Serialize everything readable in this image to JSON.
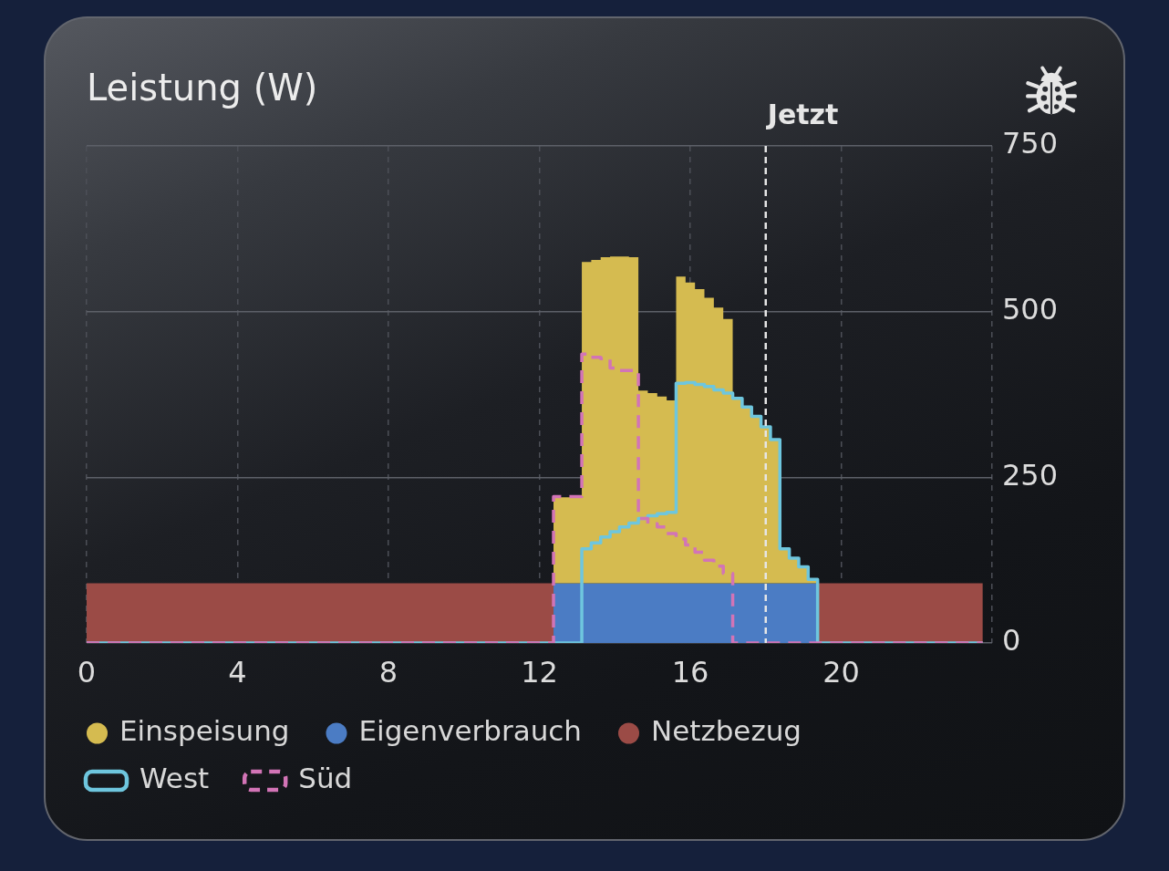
{
  "chart_data": {
    "type": "area",
    "title": "Leistung (W)",
    "x": [
      0,
      12.375,
      12.375,
      13.125,
      13.125,
      13.375,
      13.375,
      13.625,
      13.625,
      13.875,
      13.875,
      14.125,
      14.125,
      14.375,
      14.375,
      14.625,
      14.625,
      14.875,
      14.875,
      15.125,
      15.125,
      15.375,
      15.375,
      15.625,
      15.625,
      15.875,
      15.875,
      16.125,
      16.125,
      16.375,
      16.375,
      16.625,
      16.625,
      16.875,
      16.875,
      17.125,
      17.125,
      17.375,
      17.375,
      17.625,
      17.625,
      17.875,
      17.875,
      18.125,
      18.125,
      18.375,
      18.375,
      18.625,
      18.625,
      18.875,
      18.875,
      19.125,
      19.125,
      19.375,
      19.375,
      23.75
    ],
    "series": [
      {
        "name": "Netzbezug",
        "color": "#9b4b46",
        "values": [
          90,
          90,
          null,
          null,
          null,
          null,
          null,
          null,
          null,
          null,
          null,
          null,
          null,
          null,
          null,
          null,
          null,
          null,
          null,
          null,
          null,
          null,
          null,
          null,
          null,
          null,
          null,
          null,
          null,
          null,
          null,
          null,
          null,
          null,
          null,
          null,
          null,
          null,
          null,
          null,
          null,
          null,
          null,
          null,
          null,
          null,
          null,
          null,
          null,
          null,
          null,
          null,
          null,
          null,
          90,
          90
        ]
      },
      {
        "name": "Eigenverbrauch",
        "color": "#4b7cc4",
        "values": [
          null,
          null,
          90,
          90,
          90,
          90,
          90,
          90,
          90,
          90,
          90,
          90,
          90,
          90,
          90,
          90,
          90,
          90,
          90,
          90,
          90,
          90,
          90,
          90,
          90,
          90,
          90,
          90,
          90,
          90,
          90,
          90,
          90,
          90,
          90,
          90,
          90,
          90,
          90,
          90,
          90,
          90,
          90,
          90,
          90,
          90,
          90,
          90,
          90,
          90,
          90,
          90,
          90,
          90,
          null,
          null
        ]
      },
      {
        "name": "Einspeisung",
        "color": "#d5bb50",
        "values": [
          null,
          null,
          130,
          130,
          485,
          485,
          488,
          488,
          492,
          492,
          493,
          493,
          493,
          493,
          492,
          492,
          291,
          291,
          287,
          287,
          282,
          282,
          276,
          276,
          463,
          463,
          454,
          454,
          444,
          444,
          431,
          431,
          416,
          416,
          399,
          399,
          279,
          279,
          266,
          266,
          252,
          252,
          236,
          236,
          217,
          217,
          52,
          52,
          38,
          38,
          25,
          25,
          6,
          6,
          null,
          null
        ]
      },
      {
        "name": "West",
        "type": "line",
        "color": "#6ec6de",
        "line_style": "solid",
        "values": [
          0,
          0,
          0,
          0,
          142,
          142,
          151,
          151,
          160,
          160,
          168,
          168,
          175,
          175,
          181,
          181,
          188,
          188,
          192,
          192,
          195,
          195,
          197,
          197,
          392,
          392,
          393,
          393,
          390,
          390,
          387,
          387,
          382,
          382,
          377,
          377,
          369,
          369,
          356,
          356,
          342,
          342,
          326,
          326,
          307,
          307,
          142,
          142,
          128,
          128,
          115,
          115,
          96,
          96,
          0,
          0
        ]
      },
      {
        "name": "Süd",
        "type": "line",
        "color": "#d274b6",
        "line_style": "dashed",
        "values": [
          0,
          0,
          221,
          221,
          436,
          436,
          431,
          431,
          429,
          429,
          415,
          415,
          411,
          411,
          411,
          411,
          188,
          188,
          180,
          180,
          175,
          175,
          165,
          165,
          157,
          157,
          148,
          148,
          137,
          137,
          125,
          125,
          116,
          116,
          105,
          105,
          0,
          0,
          0,
          0,
          0,
          0,
          0,
          0,
          0,
          0,
          0,
          0,
          0,
          0,
          0,
          0,
          0,
          0,
          0,
          0
        ]
      }
    ],
    "stacked": true,
    "xlim": [
      0,
      24
    ],
    "xticks": [
      0,
      4,
      8,
      12,
      16,
      20,
      {
        "value": 24,
        "label": null
      }
    ],
    "ylim": [
      0,
      750
    ],
    "yticks": [
      0,
      250,
      500,
      750
    ],
    "grid": true,
    "legend": "bottom",
    "ref_lines": [
      {
        "axis": "x",
        "value": 18,
        "label": "Jetzt",
        "color": "#e6e6e6",
        "line_style": "dashed"
      }
    ]
  }
}
